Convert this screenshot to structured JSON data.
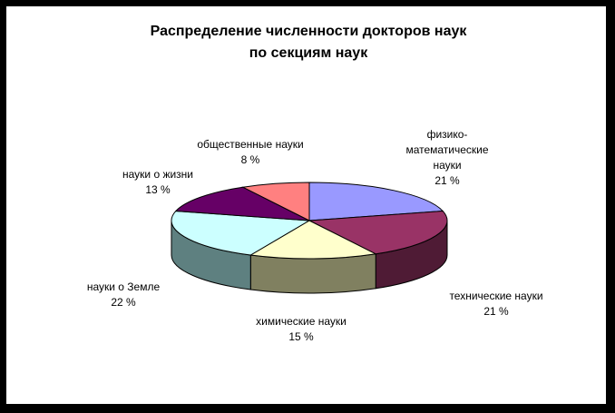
{
  "chart_data": {
    "type": "pie",
    "title": [
      "Распределение численности докторов наук",
      "по секциям наук"
    ],
    "slices": [
      {
        "label": [
          "физико-",
          "математические",
          "науки"
        ],
        "pct_text": "21 %",
        "value": 21,
        "color": "#9999FF",
        "side": "#5F5FA0"
      },
      {
        "label": [
          "технические науки"
        ],
        "pct_text": "21 %",
        "value": 21,
        "color": "#993366",
        "side": "#4F1B35"
      },
      {
        "label": [
          "химические науки"
        ],
        "pct_text": "15 %",
        "value": 15,
        "color": "#FFFFCC",
        "side": "#808060"
      },
      {
        "label": [
          "науки о Земле"
        ],
        "pct_text": "22 %",
        "value": 22,
        "color": "#CCFFFF",
        "side": "#5E8080"
      },
      {
        "label": [
          "науки о жизни"
        ],
        "pct_text": "13 %",
        "value": 13,
        "color": "#660066",
        "side": "#330033"
      },
      {
        "label": [
          "общественные науки"
        ],
        "pct_text": "8 %",
        "value": 8,
        "color": "#FF8080",
        "side": "#804040"
      }
    ],
    "start_angle_deg": 90,
    "direction": "clockwise",
    "style": "3d"
  }
}
